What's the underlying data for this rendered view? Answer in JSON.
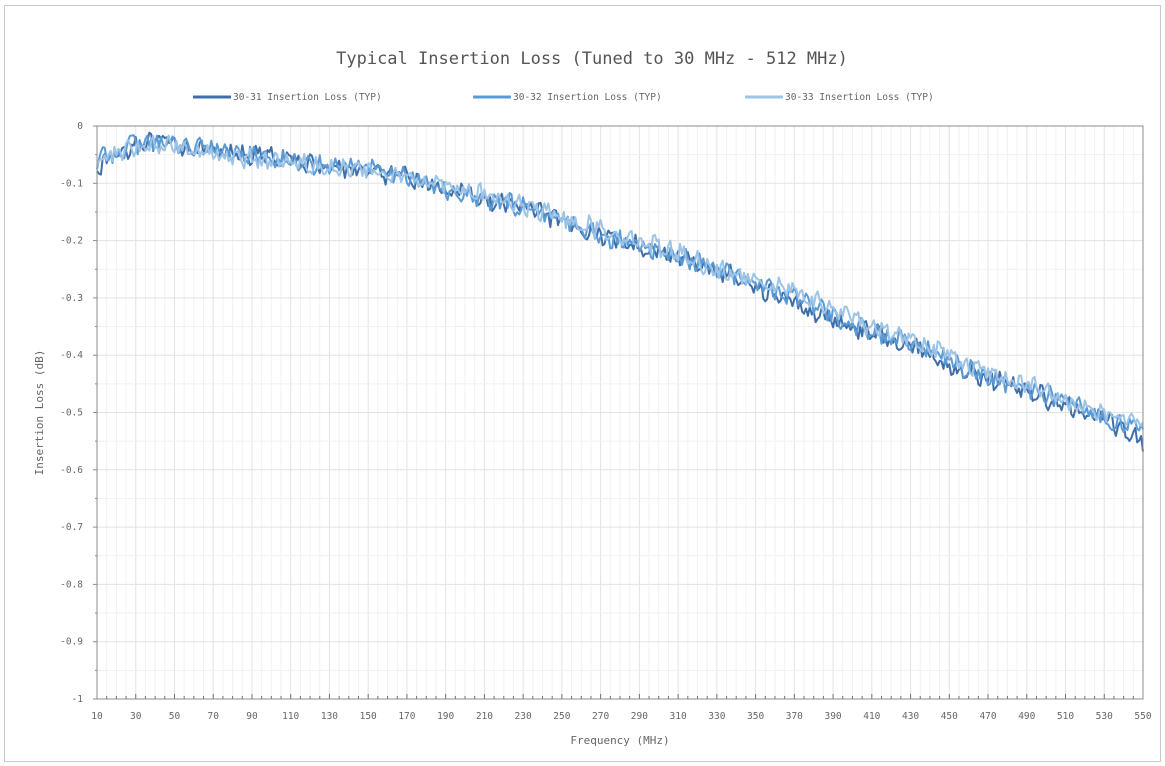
{
  "chart_data": {
    "type": "line",
    "title": "Typical Insertion Loss (Tuned to 30 MHz - 512 MHz)",
    "xlabel": "Frequency (MHz)",
    "ylabel": "Insertion Loss (dB)",
    "xlim": [
      10,
      550
    ],
    "ylim": [
      -1,
      0
    ],
    "x_ticks": [
      "10",
      "30",
      "50",
      "70",
      "90",
      "110",
      "130",
      "150",
      "170",
      "190",
      "210",
      "230",
      "250",
      "270",
      "290",
      "310",
      "330",
      "350",
      "370",
      "390",
      "410",
      "430",
      "450",
      "470",
      "490",
      "510",
      "530",
      "550"
    ],
    "y_ticks": [
      "0",
      "-0.1",
      "-0.2",
      "-0.3",
      "-0.4",
      "-0.5",
      "-0.6",
      "-0.7",
      "-0.8",
      "-0.9",
      "-1"
    ],
    "grid": true,
    "legend_position": "top-center",
    "series": [
      {
        "name": "30-31 Insertion Loss (TYP)",
        "color": "#3f6fa8",
        "x": [
          10,
          30,
          50,
          70,
          90,
          110,
          130,
          150,
          170,
          190,
          210,
          230,
          250,
          270,
          290,
          310,
          330,
          350,
          370,
          390,
          410,
          430,
          450,
          470,
          490,
          510,
          530,
          550
        ],
        "y": [
          -0.07,
          -0.03,
          -0.03,
          -0.05,
          -0.05,
          -0.06,
          -0.07,
          -0.08,
          -0.09,
          -0.11,
          -0.13,
          -0.14,
          -0.17,
          -0.19,
          -0.21,
          -0.23,
          -0.25,
          -0.28,
          -0.31,
          -0.34,
          -0.36,
          -0.38,
          -0.42,
          -0.44,
          -0.46,
          -0.49,
          -0.51,
          -0.55
        ]
      },
      {
        "name": "30-32 Insertion Loss (TYP)",
        "color": "#5b9bd5",
        "x": [
          10,
          30,
          50,
          70,
          90,
          110,
          130,
          150,
          170,
          190,
          210,
          230,
          250,
          270,
          290,
          310,
          330,
          350,
          370,
          390,
          410,
          430,
          450,
          470,
          490,
          510,
          530,
          550
        ],
        "y": [
          -0.06,
          -0.03,
          -0.03,
          -0.04,
          -0.05,
          -0.06,
          -0.07,
          -0.07,
          -0.09,
          -0.11,
          -0.13,
          -0.14,
          -0.16,
          -0.19,
          -0.21,
          -0.23,
          -0.25,
          -0.27,
          -0.3,
          -0.33,
          -0.36,
          -0.38,
          -0.41,
          -0.44,
          -0.46,
          -0.48,
          -0.51,
          -0.53
        ]
      },
      {
        "name": "30-33 Insertion Loss (TYP)",
        "color": "#9dc3e6",
        "x": [
          10,
          30,
          50,
          70,
          90,
          110,
          130,
          150,
          170,
          190,
          210,
          230,
          250,
          270,
          290,
          310,
          330,
          350,
          370,
          390,
          410,
          430,
          450,
          470,
          490,
          510,
          530,
          550
        ],
        "y": [
          -0.06,
          -0.04,
          -0.03,
          -0.05,
          -0.06,
          -0.06,
          -0.07,
          -0.08,
          -0.09,
          -0.1,
          -0.12,
          -0.14,
          -0.16,
          -0.18,
          -0.2,
          -0.22,
          -0.25,
          -0.27,
          -0.29,
          -0.32,
          -0.35,
          -0.37,
          -0.4,
          -0.43,
          -0.45,
          -0.48,
          -0.5,
          -0.52
        ]
      }
    ]
  }
}
